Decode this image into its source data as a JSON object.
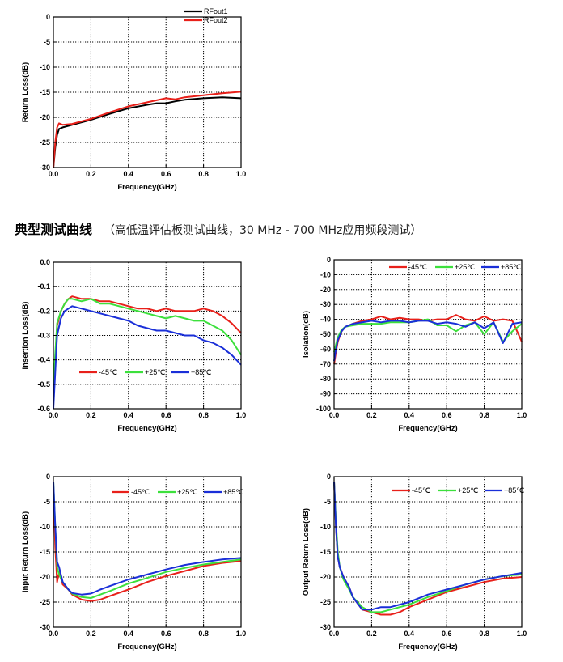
{
  "section": {
    "title": "典型测试曲线",
    "note": "（高低温评估板测试曲线，30 MHz - 700 MHz应用频段测试）"
  },
  "chart_data": [
    {
      "id": "rfout",
      "type": "line",
      "xlabel": "Frequency(GHz)",
      "ylabel": "Return Loss(dB)",
      "xlim": [
        0,
        1.0
      ],
      "ylim": [
        -30,
        0
      ],
      "xticks": [
        0,
        0.2,
        0.4,
        0.6,
        0.8,
        1.0
      ],
      "xtick_labels": [
        "0.0",
        "0.2",
        "0.4",
        "0.6",
        "0.8",
        "1.0"
      ],
      "yticks": [
        0,
        -5,
        -10,
        -15,
        -20,
        -25,
        -30
      ],
      "ytick_labels": [
        "0",
        "-5",
        "-10",
        "-15",
        "-20",
        "-25",
        "-30"
      ],
      "grid": true,
      "legend": "top-right",
      "series": [
        {
          "name": "RFout1",
          "color": "#000000",
          "x": [
            0.0,
            0.01,
            0.02,
            0.03,
            0.05,
            0.1,
            0.15,
            0.2,
            0.3,
            0.4,
            0.5,
            0.55,
            0.6,
            0.65,
            0.7,
            0.8,
            0.9,
            1.0
          ],
          "y": [
            -30,
            -26,
            -23.5,
            -22.3,
            -22,
            -21.5,
            -21,
            -20.5,
            -19.3,
            -18.2,
            -17.5,
            -17.2,
            -17.2,
            -16.8,
            -16.5,
            -16.2,
            -16.0,
            -16.2
          ]
        },
        {
          "name": "RFout2",
          "color": "#e8201a",
          "x": [
            0.0,
            0.01,
            0.02,
            0.03,
            0.05,
            0.1,
            0.15,
            0.2,
            0.3,
            0.4,
            0.5,
            0.55,
            0.6,
            0.65,
            0.7,
            0.8,
            0.9,
            1.0
          ],
          "y": [
            -30,
            -25,
            -22,
            -21.2,
            -21.5,
            -21.3,
            -20.8,
            -20.3,
            -19.0,
            -17.8,
            -17.0,
            -16.6,
            -16.2,
            -16.4,
            -16.0,
            -15.6,
            -15.2,
            -14.9
          ]
        }
      ]
    },
    {
      "id": "insertion",
      "type": "line",
      "xlabel": "Frequency(GHz)",
      "ylabel": "Insertion Loss(dB)",
      "xlim": [
        0,
        1.0
      ],
      "ylim": [
        -0.6,
        0.0
      ],
      "xticks": [
        0,
        0.2,
        0.4,
        0.6,
        0.8,
        1.0
      ],
      "xtick_labels": [
        "0.0",
        "0.2",
        "0.4",
        "0.6",
        "0.8",
        "1.0"
      ],
      "yticks": [
        0,
        -0.1,
        -0.2,
        -0.3,
        -0.4,
        -0.5,
        -0.6
      ],
      "ytick_labels": [
        "0.0",
        "-0.1",
        "-0.2",
        "-0.3",
        "-0.4",
        "-0.5",
        "-0.6"
      ],
      "grid": true,
      "legend": "bottom-center",
      "series": [
        {
          "name": "-45℃",
          "color": "#e8201a",
          "x": [
            0.0,
            0.02,
            0.04,
            0.06,
            0.08,
            0.1,
            0.15,
            0.2,
            0.25,
            0.3,
            0.35,
            0.4,
            0.45,
            0.5,
            0.55,
            0.6,
            0.65,
            0.7,
            0.75,
            0.8,
            0.85,
            0.9,
            0.95,
            1.0
          ],
          "y": [
            -0.55,
            -0.26,
            -0.2,
            -0.17,
            -0.15,
            -0.14,
            -0.15,
            -0.15,
            -0.16,
            -0.16,
            -0.17,
            -0.18,
            -0.19,
            -0.19,
            -0.2,
            -0.19,
            -0.2,
            -0.2,
            -0.2,
            -0.19,
            -0.2,
            -0.22,
            -0.25,
            -0.29
          ]
        },
        {
          "name": "+25℃",
          "color": "#3ce03c",
          "x": [
            0.0,
            0.02,
            0.04,
            0.06,
            0.08,
            0.1,
            0.15,
            0.2,
            0.25,
            0.3,
            0.35,
            0.4,
            0.45,
            0.5,
            0.55,
            0.6,
            0.65,
            0.7,
            0.75,
            0.8,
            0.85,
            0.9,
            0.95,
            1.0
          ],
          "y": [
            -0.5,
            -0.25,
            -0.2,
            -0.17,
            -0.15,
            -0.15,
            -0.16,
            -0.15,
            -0.17,
            -0.17,
            -0.18,
            -0.19,
            -0.2,
            -0.21,
            -0.22,
            -0.23,
            -0.22,
            -0.23,
            -0.24,
            -0.24,
            -0.26,
            -0.28,
            -0.32,
            -0.38
          ]
        },
        {
          "name": "+85℃",
          "color": "#1a2fd8",
          "x": [
            0.0,
            0.02,
            0.04,
            0.06,
            0.08,
            0.1,
            0.15,
            0.2,
            0.25,
            0.3,
            0.35,
            0.4,
            0.45,
            0.5,
            0.55,
            0.6,
            0.65,
            0.7,
            0.75,
            0.8,
            0.85,
            0.9,
            0.95,
            1.0
          ],
          "y": [
            -0.6,
            -0.3,
            -0.23,
            -0.2,
            -0.19,
            -0.18,
            -0.19,
            -0.2,
            -0.21,
            -0.22,
            -0.23,
            -0.24,
            -0.26,
            -0.27,
            -0.28,
            -0.28,
            -0.29,
            -0.3,
            -0.3,
            -0.32,
            -0.33,
            -0.35,
            -0.38,
            -0.42
          ]
        }
      ]
    },
    {
      "id": "isolation",
      "type": "line",
      "xlabel": "Frequency(GHz)",
      "ylabel": "Isolation(dB)",
      "xlim": [
        0,
        1.0
      ],
      "ylim": [
        -100,
        0
      ],
      "xticks": [
        0,
        0.2,
        0.4,
        0.6,
        0.8,
        1.0
      ],
      "xtick_labels": [
        "0.0",
        "0.2",
        "0.4",
        "0.6",
        "0.8",
        "1.0"
      ],
      "yticks": [
        0,
        -10,
        -20,
        -30,
        -40,
        -50,
        -60,
        -70,
        -80,
        -90,
        -100
      ],
      "ytick_labels": [
        "0",
        "-10",
        "-20",
        "-30",
        "-40",
        "-50",
        "-60",
        "-70",
        "-80",
        "-90",
        "-100"
      ],
      "grid": true,
      "legend": "top-right",
      "series": [
        {
          "name": "-45℃",
          "color": "#e8201a",
          "x": [
            0.0,
            0.01,
            0.02,
            0.04,
            0.06,
            0.1,
            0.15,
            0.2,
            0.25,
            0.3,
            0.35,
            0.4,
            0.45,
            0.5,
            0.55,
            0.6,
            0.65,
            0.7,
            0.75,
            0.8,
            0.85,
            0.9,
            0.95,
            1.0
          ],
          "y": [
            -70,
            -62,
            -55,
            -48,
            -45,
            -43,
            -41,
            -40,
            -38,
            -40,
            -39,
            -40,
            -40,
            -41,
            -40,
            -40,
            -37,
            -40,
            -41,
            -38,
            -41,
            -40,
            -41,
            -55
          ]
        },
        {
          "name": "+25℃",
          "color": "#3ce03c",
          "x": [
            0.0,
            0.01,
            0.02,
            0.04,
            0.06,
            0.1,
            0.15,
            0.2,
            0.25,
            0.3,
            0.35,
            0.4,
            0.45,
            0.5,
            0.55,
            0.6,
            0.65,
            0.7,
            0.75,
            0.8,
            0.85,
            0.9,
            0.95,
            1.0
          ],
          "y": [
            -62,
            -57,
            -52,
            -47,
            -45,
            -44,
            -43,
            -43,
            -43,
            -42,
            -42,
            -42,
            -41,
            -40,
            -44,
            -44,
            -48,
            -44,
            -42,
            -50,
            -42,
            -55,
            -48,
            -43
          ]
        },
        {
          "name": "+85℃",
          "color": "#1a2fd8",
          "x": [
            0.0,
            0.01,
            0.02,
            0.04,
            0.06,
            0.1,
            0.15,
            0.2,
            0.25,
            0.3,
            0.35,
            0.4,
            0.45,
            0.5,
            0.55,
            0.6,
            0.65,
            0.7,
            0.75,
            0.8,
            0.85,
            0.9,
            0.95,
            1.0
          ],
          "y": [
            -68,
            -60,
            -54,
            -48,
            -45,
            -43,
            -42,
            -41,
            -42,
            -41,
            -41,
            -42,
            -41,
            -41,
            -43,
            -42,
            -43,
            -45,
            -42,
            -46,
            -42,
            -56,
            -43,
            -42
          ]
        }
      ]
    },
    {
      "id": "input-return",
      "type": "line",
      "xlabel": "Frequency(GHz)",
      "ylabel": "Input Return Loss(dB)",
      "xlim": [
        0,
        1.0
      ],
      "ylim": [
        -30,
        0
      ],
      "xticks": [
        0,
        0.2,
        0.4,
        0.6,
        0.8,
        1.0
      ],
      "xtick_labels": [
        "0.0",
        "0.2",
        "0.4",
        "0.6",
        "0.8",
        "1.0"
      ],
      "yticks": [
        0,
        -5,
        -10,
        -15,
        -20,
        -25,
        -30
      ],
      "ytick_labels": [
        "0",
        "-5",
        "-10",
        "-15",
        "-20",
        "-25",
        "-30"
      ],
      "grid": true,
      "legend": "top-right",
      "series": [
        {
          "name": "-45℃",
          "color": "#e8201a",
          "x": [
            0.0,
            0.01,
            0.02,
            0.03,
            0.05,
            0.08,
            0.1,
            0.15,
            0.2,
            0.25,
            0.3,
            0.4,
            0.5,
            0.6,
            0.7,
            0.8,
            0.9,
            1.0
          ],
          "y": [
            -2,
            -14,
            -21,
            -19,
            -21.5,
            -22.5,
            -23.5,
            -24.5,
            -24.8,
            -24.5,
            -23.8,
            -22.5,
            -21,
            -19.8,
            -18.8,
            -17.8,
            -17.2,
            -16.8
          ]
        },
        {
          "name": "+25℃",
          "color": "#3ce03c",
          "x": [
            0.0,
            0.01,
            0.02,
            0.03,
            0.05,
            0.08,
            0.1,
            0.15,
            0.2,
            0.25,
            0.3,
            0.4,
            0.5,
            0.6,
            0.7,
            0.8,
            0.9,
            1.0
          ],
          "y": [
            -1,
            -10,
            -18,
            -19.5,
            -21,
            -22.5,
            -23.3,
            -24,
            -24.2,
            -23.5,
            -22.8,
            -21.3,
            -20.2,
            -19,
            -18.2,
            -17.5,
            -17,
            -16.5
          ]
        },
        {
          "name": "+85℃",
          "color": "#1a2fd8",
          "x": [
            0.0,
            0.01,
            0.02,
            0.03,
            0.05,
            0.08,
            0.1,
            0.15,
            0.2,
            0.25,
            0.3,
            0.4,
            0.5,
            0.6,
            0.7,
            0.8,
            0.9,
            1.0
          ],
          "y": [
            -1,
            -10,
            -17,
            -18,
            -21,
            -22.5,
            -23.2,
            -23.5,
            -23.3,
            -22.5,
            -21.8,
            -20.5,
            -19.5,
            -18.5,
            -17.6,
            -17,
            -16.5,
            -16.2
          ]
        }
      ]
    },
    {
      "id": "output-return",
      "type": "line",
      "xlabel": "Frequency(GHz)",
      "ylabel": "Output Return Loss(dB)",
      "xlim": [
        0,
        1.0
      ],
      "ylim": [
        -30,
        0
      ],
      "xticks": [
        0,
        0.2,
        0.4,
        0.6,
        0.8,
        1.0
      ],
      "xtick_labels": [
        "0.0",
        "0.2",
        "0.4",
        "0.6",
        "0.8",
        "1.0"
      ],
      "yticks": [
        0,
        -5,
        -10,
        -15,
        -20,
        -25,
        -30
      ],
      "ytick_labels": [
        "0",
        "-5",
        "-10",
        "-15",
        "-20",
        "-25",
        "-30"
      ],
      "grid": true,
      "legend": "top-right",
      "series": [
        {
          "name": "-45℃",
          "color": "#e8201a",
          "x": [
            0.0,
            0.01,
            0.02,
            0.03,
            0.05,
            0.08,
            0.1,
            0.15,
            0.2,
            0.25,
            0.3,
            0.35,
            0.4,
            0.5,
            0.6,
            0.7,
            0.8,
            0.9,
            1.0
          ],
          "y": [
            -1,
            -10,
            -16,
            -18,
            -20,
            -22,
            -24,
            -26.5,
            -27,
            -27.5,
            -27.5,
            -27,
            -26,
            -24.5,
            -23,
            -22,
            -21,
            -20.3,
            -20
          ]
        },
        {
          "name": "+25℃",
          "color": "#3ce03c",
          "x": [
            0.0,
            0.01,
            0.02,
            0.03,
            0.05,
            0.08,
            0.1,
            0.15,
            0.2,
            0.25,
            0.3,
            0.35,
            0.4,
            0.5,
            0.6,
            0.7,
            0.8,
            0.9,
            1.0
          ],
          "y": [
            -1,
            -9,
            -15,
            -18,
            -20.5,
            -22.5,
            -24,
            -26,
            -27,
            -27,
            -26.5,
            -26,
            -25.5,
            -24,
            -22.8,
            -21.5,
            -20.5,
            -19.8,
            -19.5
          ]
        },
        {
          "name": "+85℃",
          "color": "#1a2fd8",
          "x": [
            0.0,
            0.01,
            0.02,
            0.03,
            0.05,
            0.08,
            0.1,
            0.15,
            0.2,
            0.25,
            0.3,
            0.35,
            0.4,
            0.5,
            0.6,
            0.7,
            0.8,
            0.9,
            1.0
          ],
          "y": [
            -1,
            -10,
            -16,
            -18,
            -20,
            -22,
            -24,
            -26.5,
            -26.5,
            -26,
            -26,
            -25.5,
            -25,
            -23.5,
            -22.5,
            -21.5,
            -20.5,
            -19.8,
            -19.2
          ]
        }
      ]
    }
  ]
}
